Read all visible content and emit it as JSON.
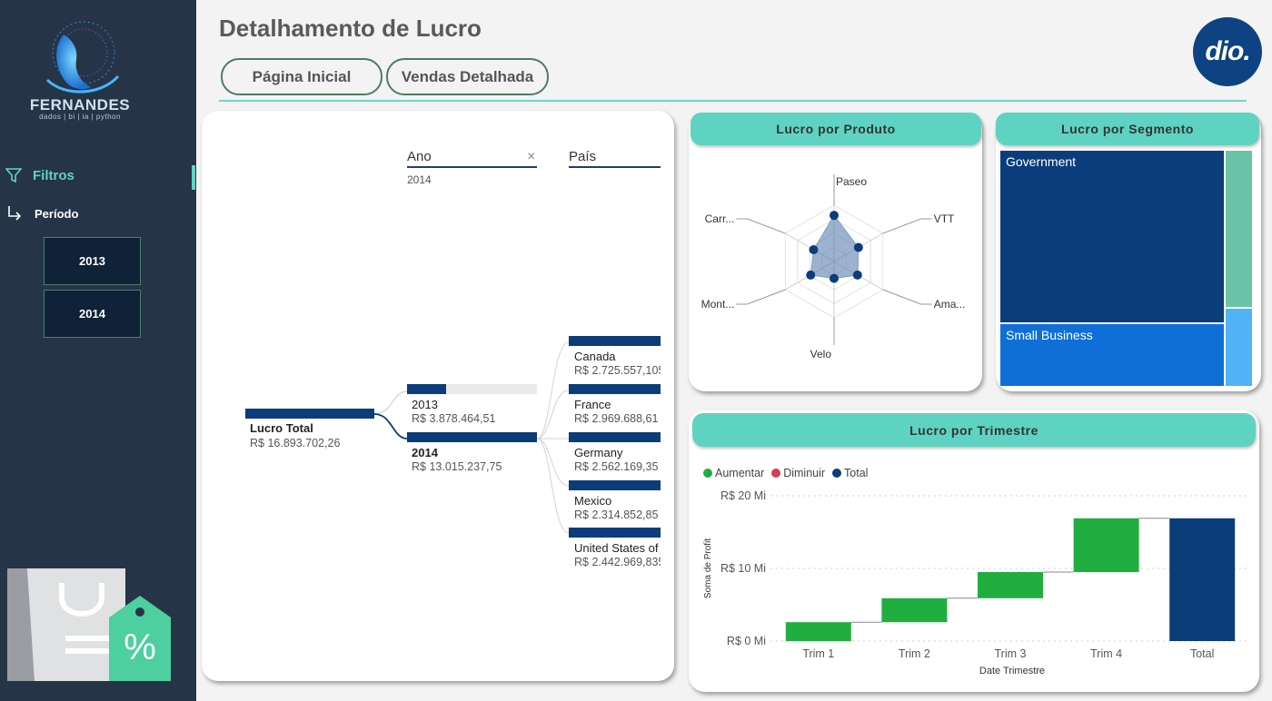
{
  "sidebar": {
    "brand": "FERNANDES",
    "brand_sub": "dados | bi | ia | python",
    "filters_label": "Filtros",
    "period_label": "Período",
    "years": [
      "2013",
      "2014"
    ]
  },
  "header": {
    "title": "Detalhamento de Lucro",
    "nav": [
      "Página Inicial",
      "Vendas Detalhada"
    ],
    "logo_text": "dio."
  },
  "decomposition_tree": {
    "col_year_header": "Ano",
    "col_year_filter": "2014",
    "col_country_header": "País",
    "root": {
      "label": "Lucro Total",
      "value": "R$ 16.893.702,26"
    },
    "years": [
      {
        "label": "2013",
        "value": "R$ 3.878.464,51",
        "fraction": 0.298
      },
      {
        "label": "2014",
        "value": "R$ 13.015.237,75",
        "fraction": 1.0
      }
    ],
    "countries": [
      {
        "label": "Canada",
        "value": "R$ 2.725.557,105"
      },
      {
        "label": "France",
        "value": "R$ 2.969.688,61"
      },
      {
        "label": "Germany",
        "value": "R$ 2.562.169,35"
      },
      {
        "label": "Mexico",
        "value": "R$ 2.314.852,85"
      },
      {
        "label": "United States of",
        "value": "R$ 2.442.969,835"
      }
    ]
  },
  "radar": {
    "title": "Lucro por Produto",
    "axes": [
      "Paseo",
      "VTT",
      "Ama...",
      "Velo",
      "Mont...",
      "Carr..."
    ],
    "values": [
      0.82,
      0.5,
      0.48,
      0.3,
      0.48,
      0.42
    ]
  },
  "segment": {
    "title": "Lucro por Segmento",
    "labels": [
      "Government",
      "Small Business"
    ],
    "colors": {
      "government": "#0b3d7a",
      "small_business": "#0f6fd6",
      "other1": "#6cc4a8",
      "other2": "#4fb3f6"
    }
  },
  "quarter": {
    "title": "Lucro por Trimestre",
    "legend": [
      {
        "label": "Aumentar",
        "color": "#1fae3f"
      },
      {
        "label": "Diminuir",
        "color": "#d83e54"
      },
      {
        "label": "Total",
        "color": "#0b3d7a"
      }
    ],
    "ylabel": "Soma de Profit",
    "xlabel": "Date Trimestre",
    "yticks": [
      "R$ 20 Mi",
      "R$ 10 Mi",
      "R$ 0 Mi"
    ]
  },
  "chart_data": {
    "type": "bar",
    "subtype": "waterfall",
    "title": "Lucro por Trimestre",
    "categories": [
      "Trim 1",
      "Trim 2",
      "Trim 3",
      "Trim 4",
      "Total"
    ],
    "increments": [
      2.6,
      3.3,
      3.6,
      7.4,
      16.9
    ],
    "ylim": [
      0,
      20
    ],
    "ylabel": "Soma de Profit",
    "xlabel": "Date Trimestre",
    "grid": true,
    "legend_position": "top-left"
  }
}
